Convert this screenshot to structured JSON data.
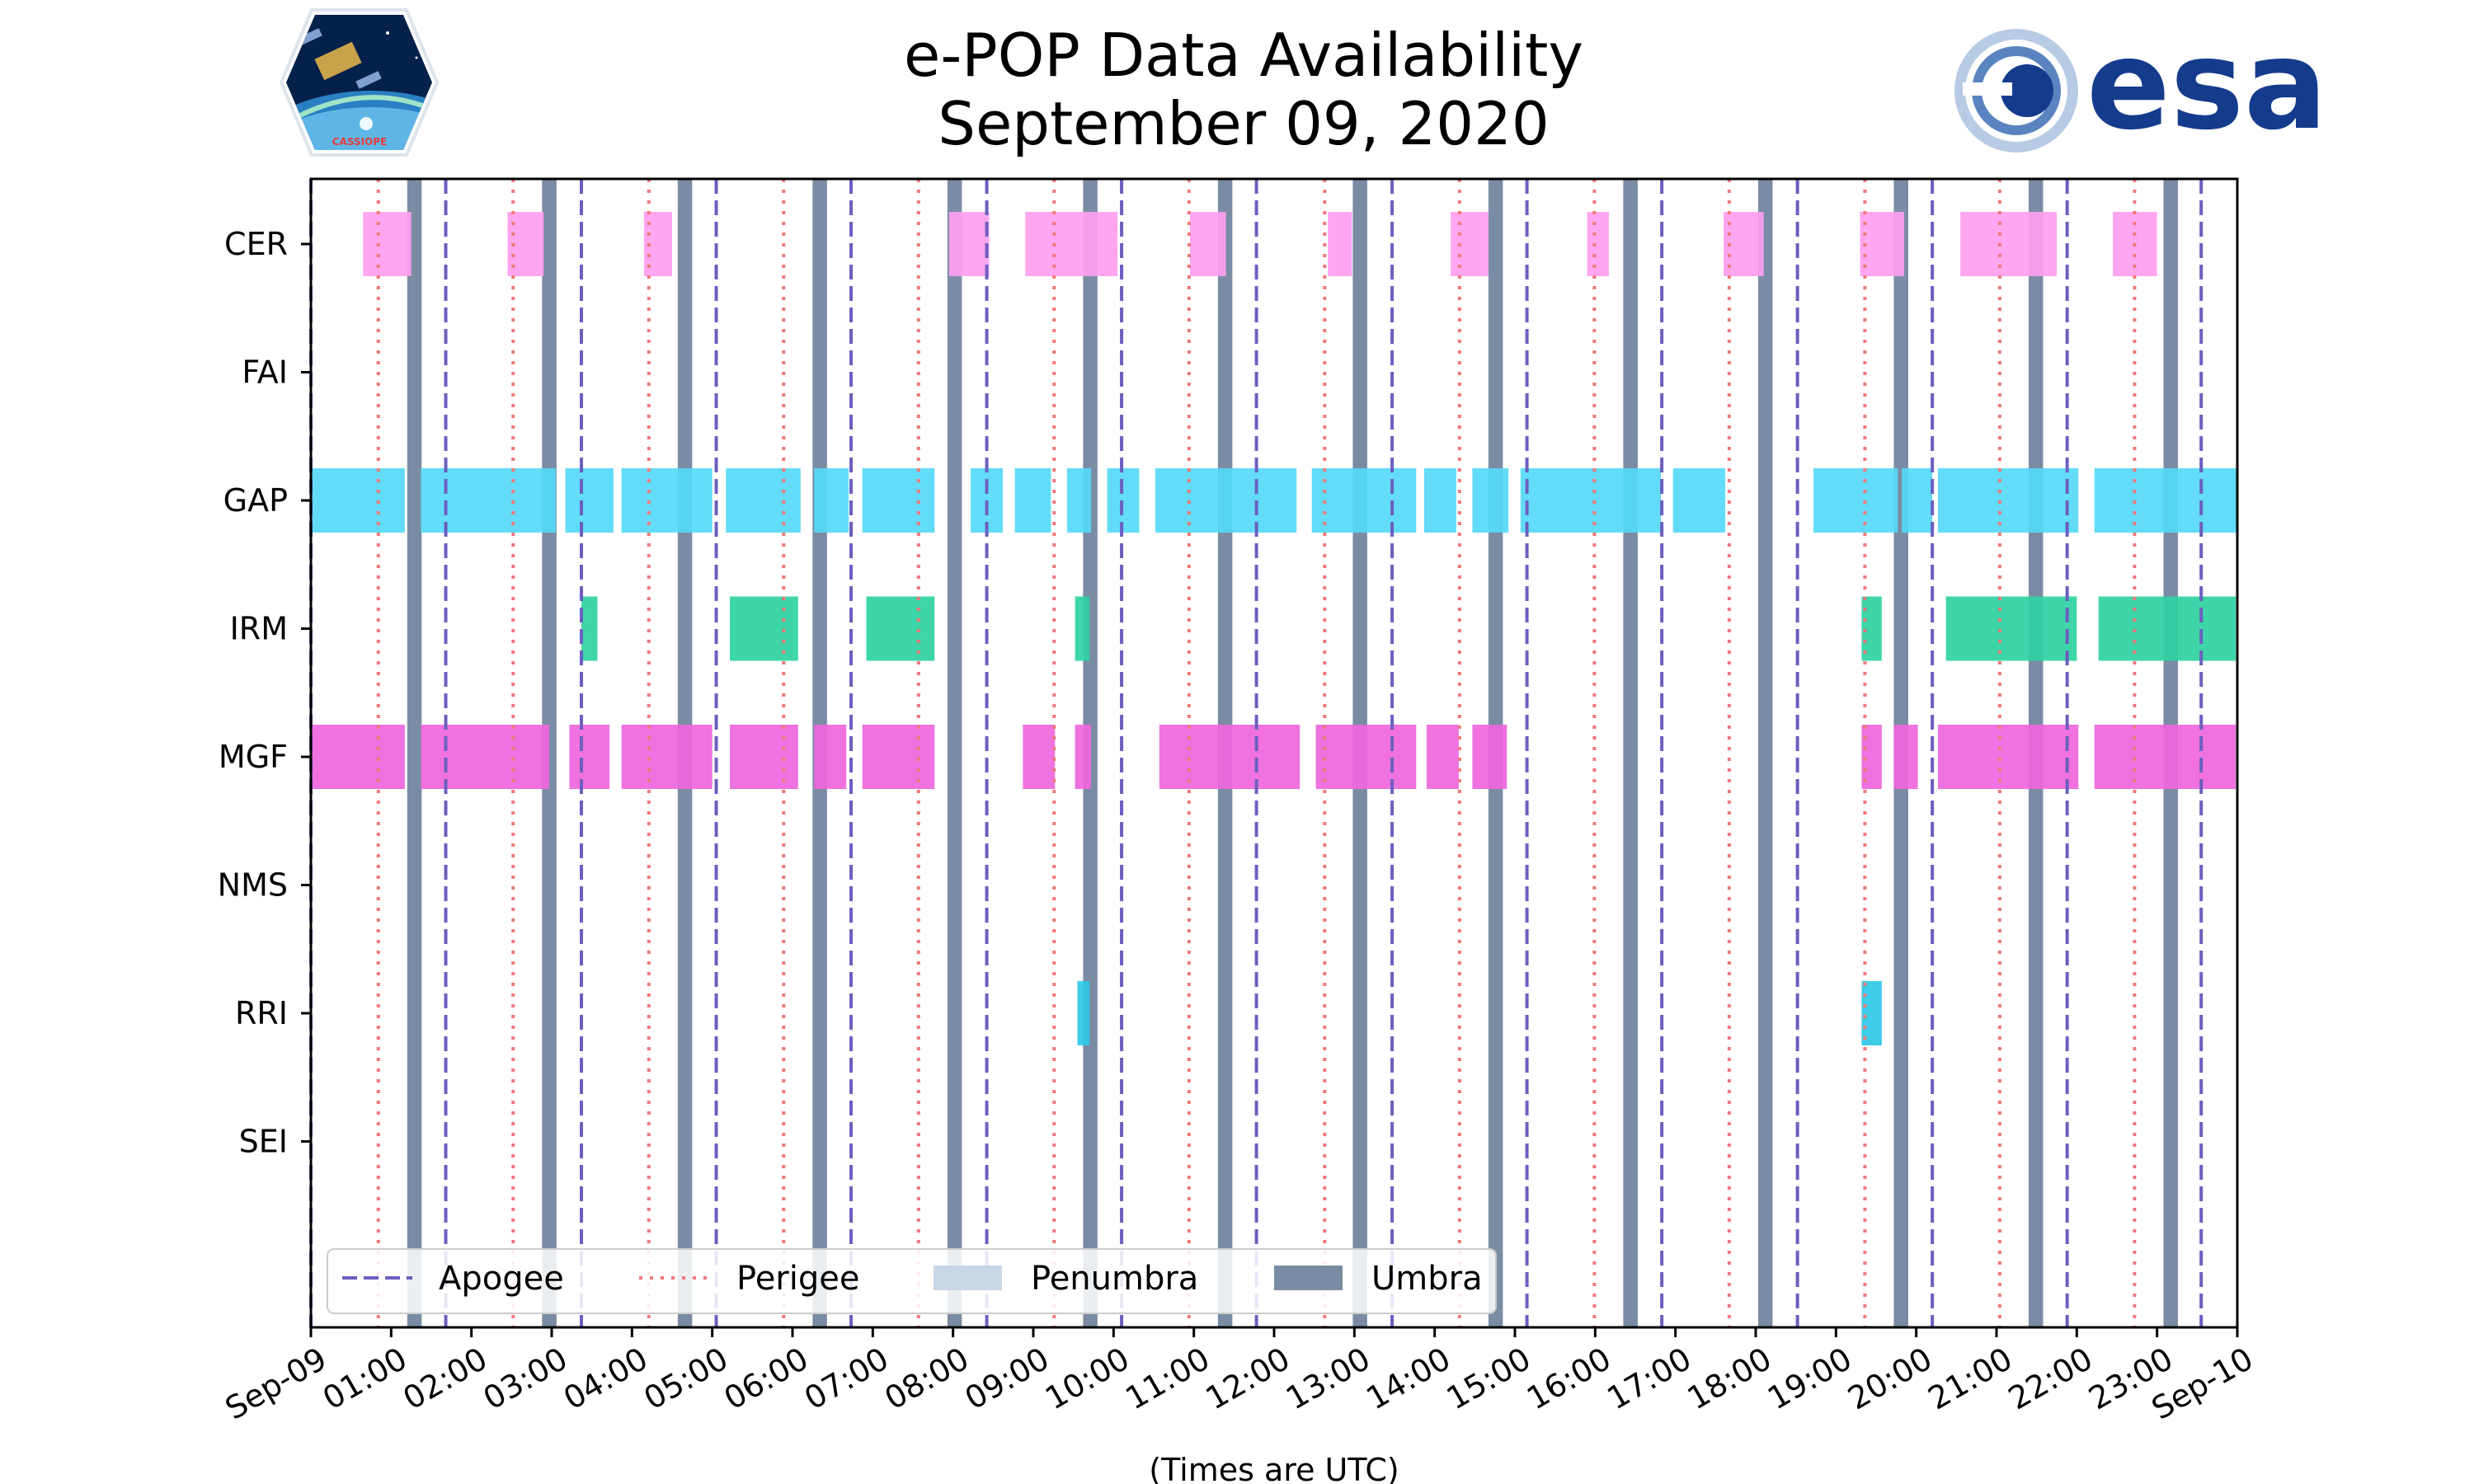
{
  "chart_data": {
    "type": "timeline",
    "title_line1": "e-POP Data Availability",
    "title_line2": "September 09, 2020",
    "xlabel": "(Times are UTC)",
    "x_range_hours": [
      0,
      24
    ],
    "x_tick_labels": [
      "Sep-09",
      "01:00",
      "02:00",
      "03:00",
      "04:00",
      "05:00",
      "06:00",
      "07:00",
      "08:00",
      "09:00",
      "10:00",
      "11:00",
      "12:00",
      "13:00",
      "14:00",
      "15:00",
      "16:00",
      "17:00",
      "18:00",
      "19:00",
      "20:00",
      "21:00",
      "22:00",
      "23:00",
      "Sep-10"
    ],
    "instruments": [
      "CER",
      "FAI",
      "GAP",
      "IRM",
      "MGF",
      "NMS",
      "RRI",
      "SEI"
    ],
    "legend": {
      "apogee": "Apogee",
      "perigee": "Perigee",
      "penumbra": "Penumbra",
      "umbra": "Umbra"
    },
    "colors": {
      "apogee": "#6b5fbf",
      "perigee": "#f07878",
      "umbra": "#7a8ca3",
      "penumbra": "#c8d6e6",
      "CER": "#ff9ef0",
      "FAI": "#66ddff",
      "GAP": "#55d9f8",
      "IRM": "#2ed3a2",
      "MGF": "#ee66dd",
      "NMS": "#9999ff",
      "RRI": "#2ec8e6",
      "SEI": "#ffaa66"
    },
    "apogee_times": [
      0.0,
      1.68,
      3.37,
      5.05,
      6.73,
      8.42,
      10.1,
      11.78,
      13.47,
      15.15,
      16.83,
      18.52,
      20.2,
      21.88,
      23.55
    ],
    "perigee_times": [
      0.84,
      2.52,
      4.21,
      5.89,
      7.57,
      9.26,
      10.94,
      12.63,
      14.31,
      15.99,
      17.67,
      19.36,
      21.04,
      22.72
    ],
    "umbra_intervals": [
      [
        1.2,
        1.38
      ],
      [
        2.88,
        3.06
      ],
      [
        4.57,
        4.75
      ],
      [
        6.25,
        6.43
      ],
      [
        7.93,
        8.11
      ],
      [
        9.62,
        9.8
      ],
      [
        11.3,
        11.48
      ],
      [
        12.98,
        13.16
      ],
      [
        14.67,
        14.85
      ],
      [
        16.35,
        16.53
      ],
      [
        18.03,
        18.21
      ],
      [
        19.72,
        19.9
      ],
      [
        21.4,
        21.58
      ],
      [
        23.08,
        23.26
      ]
    ],
    "availability": {
      "CER": [
        [
          0.65,
          1.25
        ],
        [
          2.45,
          2.9
        ],
        [
          4.15,
          4.5
        ],
        [
          7.95,
          8.45
        ],
        [
          8.9,
          10.05
        ],
        [
          10.95,
          11.4
        ],
        [
          12.67,
          12.97
        ],
        [
          14.2,
          14.67
        ],
        [
          15.9,
          16.17
        ],
        [
          17.6,
          18.1
        ],
        [
          19.3,
          19.85
        ],
        [
          20.55,
          21.75
        ],
        [
          22.45,
          23.0
        ]
      ],
      "FAI": [],
      "GAP": [
        [
          0.0,
          1.17
        ],
        [
          1.37,
          3.05
        ],
        [
          3.17,
          3.77
        ],
        [
          3.87,
          5.0
        ],
        [
          5.17,
          6.1
        ],
        [
          6.27,
          6.7
        ],
        [
          6.87,
          7.77
        ],
        [
          8.22,
          8.62
        ],
        [
          8.77,
          9.22
        ],
        [
          9.42,
          9.72
        ],
        [
          9.92,
          10.32
        ],
        [
          10.52,
          12.28
        ],
        [
          12.47,
          13.77
        ],
        [
          13.87,
          14.27
        ],
        [
          14.47,
          14.92
        ],
        [
          15.07,
          16.82
        ],
        [
          16.97,
          17.62
        ],
        [
          18.72,
          19.77
        ],
        [
          19.82,
          20.2
        ],
        [
          20.27,
          22.02
        ],
        [
          22.22,
          24.0
        ]
      ],
      "IRM": [
        [
          3.37,
          3.57
        ],
        [
          5.22,
          6.07
        ],
        [
          6.92,
          7.77
        ],
        [
          9.52,
          9.7
        ],
        [
          19.32,
          19.57
        ],
        [
          20.37,
          22.0
        ],
        [
          22.27,
          23.98
        ]
      ],
      "MGF": [
        [
          0.0,
          1.17
        ],
        [
          1.37,
          2.97
        ],
        [
          3.22,
          3.72
        ],
        [
          3.87,
          5.0
        ],
        [
          5.22,
          6.07
        ],
        [
          6.27,
          6.67
        ],
        [
          6.87,
          7.77
        ],
        [
          8.87,
          9.27
        ],
        [
          9.52,
          9.72
        ],
        [
          10.57,
          12.32
        ],
        [
          12.52,
          13.77
        ],
        [
          13.9,
          14.3
        ],
        [
          14.47,
          14.9
        ],
        [
          19.32,
          19.57
        ],
        [
          19.72,
          20.02
        ],
        [
          20.27,
          22.02
        ],
        [
          22.22,
          23.98
        ]
      ],
      "NMS": [],
      "RRI": [
        [
          9.55,
          9.7
        ],
        [
          19.32,
          19.57
        ]
      ],
      "SEI": []
    }
  },
  "logos": {
    "left_mission": "CASSIOPE",
    "right_agency": "esa"
  }
}
